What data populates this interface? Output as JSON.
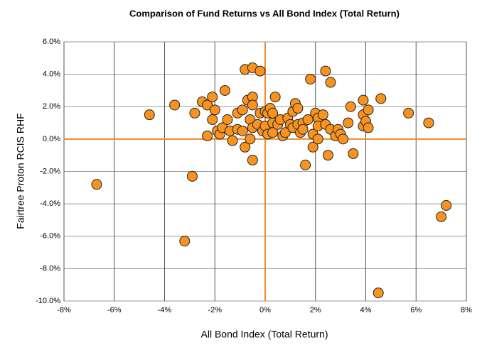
{
  "chart_data": {
    "type": "scatter",
    "title": "Comparison of Fund Returns vs All Bond Index (Total Return)",
    "x_label": "All Bond Index (Total Return)",
    "y_label": "Fairtree Proton RCIS RHF",
    "color": "#f7931e",
    "zero_line_color": "#f08a2c",
    "grid": true,
    "x": [
      -6.7,
      -4.6,
      -3.6,
      -3.2,
      -2.9,
      -2.8,
      -2.5,
      -2.3,
      -2.3,
      -2.1,
      -2.1,
      -2.0,
      -1.9,
      -1.8,
      -1.7,
      -1.6,
      -1.5,
      -1.4,
      -1.3,
      -1.1,
      -1.1,
      -0.9,
      -0.8,
      -0.9,
      -0.8,
      -0.7,
      -0.6,
      -0.5,
      -0.5,
      -0.5,
      -0.6,
      -0.5,
      -0.5,
      -0.3,
      -0.2,
      -0.2,
      -0.1,
      0.0,
      0.0,
      0.1,
      0.1,
      0.2,
      0.3,
      0.3,
      0.4,
      0.3,
      0.5,
      0.6,
      0.7,
      0.8,
      0.9,
      1.0,
      1.1,
      1.1,
      1.2,
      1.3,
      1.3,
      1.4,
      1.5,
      1.5,
      1.6,
      1.8,
      1.7,
      1.9,
      1.9,
      2.0,
      2.1,
      2.1,
      2.1,
      2.3,
      2.4,
      2.4,
      2.5,
      2.6,
      2.6,
      2.8,
      2.9,
      3.0,
      3.1,
      3.3,
      3.4,
      3.5,
      3.9,
      3.9,
      3.9,
      4.0,
      4.1,
      4.1,
      4.5,
      4.6,
      5.7,
      6.5,
      7.0,
      7.2
    ],
    "values": [
      -2.8,
      1.5,
      2.1,
      -6.3,
      -2.3,
      1.6,
      2.3,
      2.1,
      0.2,
      2.6,
      1.2,
      1.8,
      0.5,
      0.3,
      0.7,
      3.0,
      1.2,
      0.5,
      -0.1,
      0.6,
      1.6,
      1.8,
      4.3,
      0.5,
      -0.5,
      2.4,
      1.2,
      4.4,
      2.6,
      2.1,
      0.0,
      -1.3,
      0.7,
      0.9,
      1.6,
      4.2,
      0.5,
      0.8,
      1.7,
      0.3,
      1.6,
      1.9,
      1.0,
      0.4,
      2.6,
      1.6,
      0.9,
      1.2,
      0.2,
      0.4,
      1.3,
      0.9,
      1.7,
      0.7,
      2.2,
      1.9,
      0.9,
      0.4,
      1.0,
      0.6,
      -1.6,
      3.7,
      1.2,
      0.3,
      -0.5,
      1.6,
      1.3,
      0.8,
      0.0,
      1.5,
      0.9,
      4.2,
      -1.0,
      3.5,
      0.6,
      0.2,
      0.6,
      0.3,
      0.0,
      1.0,
      2.0,
      -0.9,
      1.5,
      2.4,
      0.8,
      1.1,
      1.8,
      0.7,
      -9.5,
      2.5,
      1.6,
      1.0,
      -4.8,
      -4.1
    ],
    "xlim": [
      -8,
      8
    ],
    "xticks": [
      {
        "value": -8,
        "label": "-8%"
      },
      {
        "value": -6,
        "label": "-6%"
      },
      {
        "value": -4,
        "label": "-4%"
      },
      {
        "value": -2,
        "label": "-2%"
      },
      {
        "value": 0,
        "label": "0%"
      },
      {
        "value": 2,
        "label": "2%"
      },
      {
        "value": 4,
        "label": "4%"
      },
      {
        "value": 6,
        "label": "6%"
      },
      {
        "value": 8,
        "label": "8%"
      }
    ],
    "ylim": [
      -10,
      6
    ],
    "yticks": [
      {
        "value": -10,
        "label": "-10.0%"
      },
      {
        "value": -8,
        "label": "-8.0%"
      },
      {
        "value": -6,
        "label": "-6.0%"
      },
      {
        "value": -4,
        "label": "-4.0%"
      },
      {
        "value": -2,
        "label": "-2.0%"
      },
      {
        "value": 0,
        "label": "0.0%"
      },
      {
        "value": 2,
        "label": "2.0%"
      },
      {
        "value": 4,
        "label": "4.0%"
      },
      {
        "value": 6,
        "label": "6.0%"
      }
    ]
  }
}
